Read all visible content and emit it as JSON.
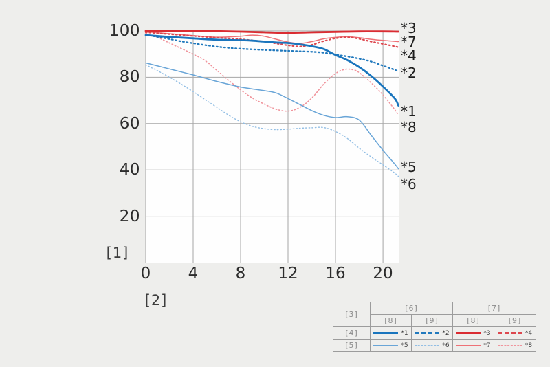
{
  "page": {
    "background": "#eeeeec"
  },
  "chart_data": {
    "type": "line",
    "title": "",
    "x_axis_label": "[2]",
    "y_axis_label": "[1]",
    "x_ticks": [
      0,
      4,
      8,
      12,
      16,
      20
    ],
    "y_ticks": [
      100,
      80,
      60,
      40,
      20
    ],
    "xlim": [
      0,
      21.33
    ],
    "ylim": [
      0,
      100
    ],
    "grid": true,
    "right_curve_labels": [
      "*3",
      "*7",
      "*4",
      "*2",
      "*1",
      "*8",
      "*5",
      "*6"
    ],
    "series": [
      {
        "label": "*1",
        "color": "#1a75bd",
        "width": 2.8,
        "dash": "solid",
        "points": [
          [
            0,
            98.2
          ],
          [
            2,
            97.4
          ],
          [
            4,
            96.8
          ],
          [
            6,
            96.2
          ],
          [
            8,
            96.0
          ],
          [
            9,
            95.8
          ],
          [
            10,
            95.4
          ],
          [
            11,
            95.0
          ],
          [
            12,
            94.8
          ],
          [
            13,
            94.2
          ],
          [
            14,
            93.4
          ],
          [
            15,
            92.2
          ],
          [
            16,
            89.6
          ],
          [
            17,
            87.4
          ],
          [
            18,
            84.4
          ],
          [
            19,
            80.6
          ],
          [
            20,
            76.0
          ],
          [
            21,
            70.8
          ],
          [
            21.3,
            67.8
          ]
        ]
      },
      {
        "label": "*2",
        "color": "#2179bd",
        "width": 2.3,
        "dash": "dotted",
        "points": [
          [
            0,
            98.4
          ],
          [
            1,
            97.4
          ],
          [
            2,
            96.5
          ],
          [
            3,
            95.5
          ],
          [
            4,
            94.7
          ],
          [
            5,
            93.9
          ],
          [
            6,
            93.2
          ],
          [
            7,
            92.7
          ],
          [
            8,
            92.3
          ],
          [
            10,
            91.8
          ],
          [
            12,
            91.4
          ],
          [
            14,
            91.0
          ],
          [
            15,
            90.6
          ],
          [
            16,
            89.8
          ],
          [
            17,
            89.0
          ],
          [
            18,
            88.0
          ],
          [
            19,
            86.8
          ],
          [
            20,
            85.0
          ],
          [
            21,
            83.2
          ],
          [
            21.3,
            82.4
          ]
        ]
      },
      {
        "label": "*3",
        "color": "#da2c32",
        "width": 2.8,
        "dash": "solid",
        "points": [
          [
            0,
            100
          ],
          [
            2,
            100
          ],
          [
            4,
            100
          ],
          [
            6,
            99.9
          ],
          [
            8,
            99.7
          ],
          [
            10,
            99.4
          ],
          [
            12,
            99.2
          ],
          [
            14,
            99.4
          ],
          [
            16,
            99.6
          ],
          [
            18,
            99.8
          ],
          [
            20,
            99.8
          ],
          [
            21.3,
            99.7
          ]
        ]
      },
      {
        "label": "*4",
        "color": "#dd474e",
        "width": 2.2,
        "dash": "dotted",
        "points": [
          [
            0,
            99.4
          ],
          [
            2,
            98.6
          ],
          [
            4,
            97.8
          ],
          [
            6,
            97.1
          ],
          [
            8,
            96.4
          ],
          [
            10,
            95.4
          ],
          [
            11,
            94.6
          ],
          [
            12,
            93.8
          ],
          [
            13,
            93.3
          ],
          [
            14,
            94.0
          ],
          [
            15,
            95.6
          ],
          [
            16,
            96.8
          ],
          [
            17,
            97.2
          ],
          [
            18,
            96.6
          ],
          [
            19,
            95.4
          ],
          [
            20,
            94.4
          ],
          [
            21.3,
            93.0
          ]
        ]
      },
      {
        "label": "*5",
        "color": "#69a5d7",
        "width": 1.5,
        "dash": "solid",
        "points": [
          [
            0,
            86.2
          ],
          [
            2,
            83.6
          ],
          [
            4,
            81.0
          ],
          [
            6,
            78.2
          ],
          [
            8,
            75.8
          ],
          [
            10,
            74.2
          ],
          [
            11,
            73.2
          ],
          [
            12,
            70.8
          ],
          [
            13,
            68.2
          ],
          [
            14,
            65.6
          ],
          [
            15,
            63.6
          ],
          [
            16,
            62.6
          ],
          [
            17,
            63.0
          ],
          [
            18,
            61.5
          ],
          [
            19,
            55.0
          ],
          [
            20,
            48.5
          ],
          [
            21,
            42.5
          ],
          [
            21.3,
            40.5
          ]
        ]
      },
      {
        "label": "*6",
        "color": "#92bee4",
        "width": 1.4,
        "dash": "dotted",
        "points": [
          [
            0,
            85.4
          ],
          [
            1,
            82.8
          ],
          [
            2,
            80.0
          ],
          [
            3,
            77.0
          ],
          [
            4,
            73.8
          ],
          [
            5,
            70.4
          ],
          [
            6,
            67.0
          ],
          [
            7,
            63.6
          ],
          [
            8,
            60.8
          ],
          [
            9,
            58.8
          ],
          [
            10,
            57.8
          ],
          [
            11,
            57.4
          ],
          [
            12,
            57.6
          ],
          [
            13,
            58.0
          ],
          [
            14,
            58.2
          ],
          [
            15,
            58.3
          ],
          [
            16,
            56.6
          ],
          [
            17,
            53.6
          ],
          [
            18,
            49.4
          ],
          [
            19,
            45.6
          ],
          [
            20,
            42.2
          ],
          [
            21,
            38.6
          ],
          [
            21.3,
            37.2
          ]
        ]
      },
      {
        "label": "*7",
        "color": "#ee7176",
        "width": 1.5,
        "dash": "solid",
        "points": [
          [
            0,
            99.6
          ],
          [
            2,
            98.8
          ],
          [
            4,
            98.0
          ],
          [
            6,
            97.3
          ],
          [
            8,
            97.7
          ],
          [
            9,
            98.2
          ],
          [
            10,
            97.7
          ],
          [
            11,
            96.4
          ],
          [
            12,
            95.2
          ],
          [
            13,
            94.6
          ],
          [
            14,
            95.4
          ],
          [
            15,
            96.6
          ],
          [
            16,
            97.2
          ],
          [
            17,
            97.5
          ],
          [
            18,
            97.1
          ],
          [
            19,
            96.4
          ],
          [
            20,
            95.9
          ],
          [
            21.3,
            95.4
          ]
        ]
      },
      {
        "label": "*8",
        "color": "#f0949c",
        "width": 1.6,
        "dash": "dotted",
        "points": [
          [
            0,
            99.0
          ],
          [
            1,
            97.2
          ],
          [
            2,
            94.8
          ],
          [
            3,
            92.4
          ],
          [
            4,
            90.0
          ],
          [
            5,
            87.2
          ],
          [
            6,
            83.0
          ],
          [
            7,
            78.6
          ],
          [
            8,
            74.6
          ],
          [
            9,
            71.0
          ],
          [
            10,
            68.4
          ],
          [
            11,
            66.2
          ],
          [
            12,
            65.4
          ],
          [
            13,
            67.0
          ],
          [
            14,
            71.0
          ],
          [
            15,
            77.0
          ],
          [
            16,
            81.6
          ],
          [
            16.8,
            83.4
          ],
          [
            17.5,
            83.2
          ],
          [
            18,
            82.0
          ],
          [
            19,
            77.6
          ],
          [
            20,
            72.4
          ],
          [
            21,
            66.0
          ],
          [
            21.3,
            63.5
          ]
        ]
      }
    ]
  },
  "legend": {
    "corner_label": "[3]",
    "group_headers": [
      "[6]",
      "[7]"
    ],
    "sub_headers": [
      "[8]",
      "[9]",
      "[8]",
      "[9]"
    ],
    "row_labels": [
      "[4]",
      "[5]"
    ]
  }
}
